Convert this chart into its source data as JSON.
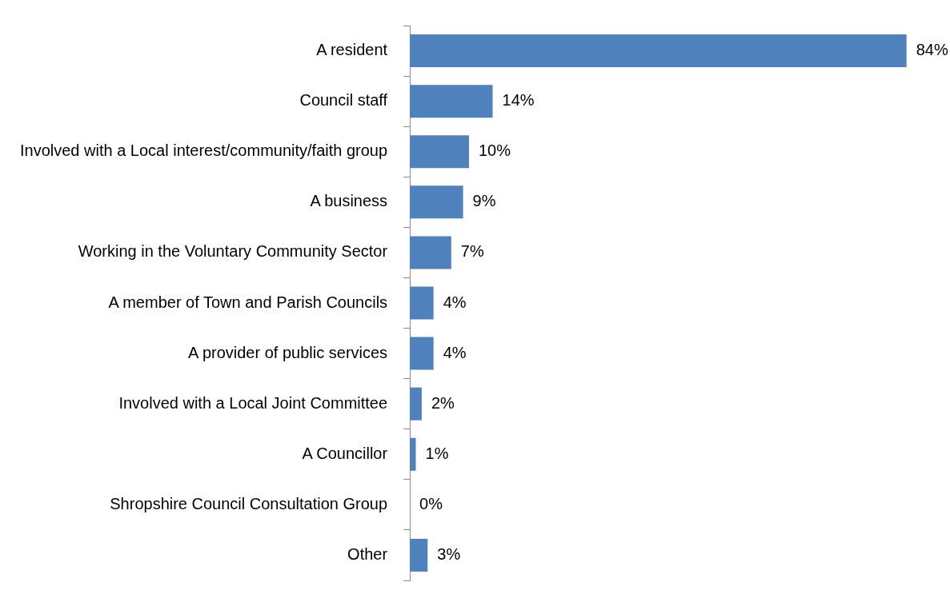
{
  "chart_data": {
    "type": "bar",
    "orientation": "horizontal",
    "categories": [
      "A resident",
      "Council staff",
      "Involved with a Local interest/community/faith group",
      "A business",
      "Working in the Voluntary Community Sector",
      "A member of Town and Parish Councils",
      "A provider of public services",
      "Involved with a Local Joint Committee",
      "A Councillor",
      "Shropshire Council Consultation Group",
      "Other"
    ],
    "values": [
      84,
      14,
      10,
      9,
      7,
      4,
      4,
      2,
      1,
      0,
      3
    ],
    "value_labels": [
      "84%",
      "14%",
      "10%",
      "9%",
      "7%",
      "4%",
      "4%",
      "2%",
      "1%",
      "0%",
      "3%"
    ],
    "color": "#4f81bd",
    "grid": false,
    "legend": false,
    "tick_labels": "y"
  }
}
